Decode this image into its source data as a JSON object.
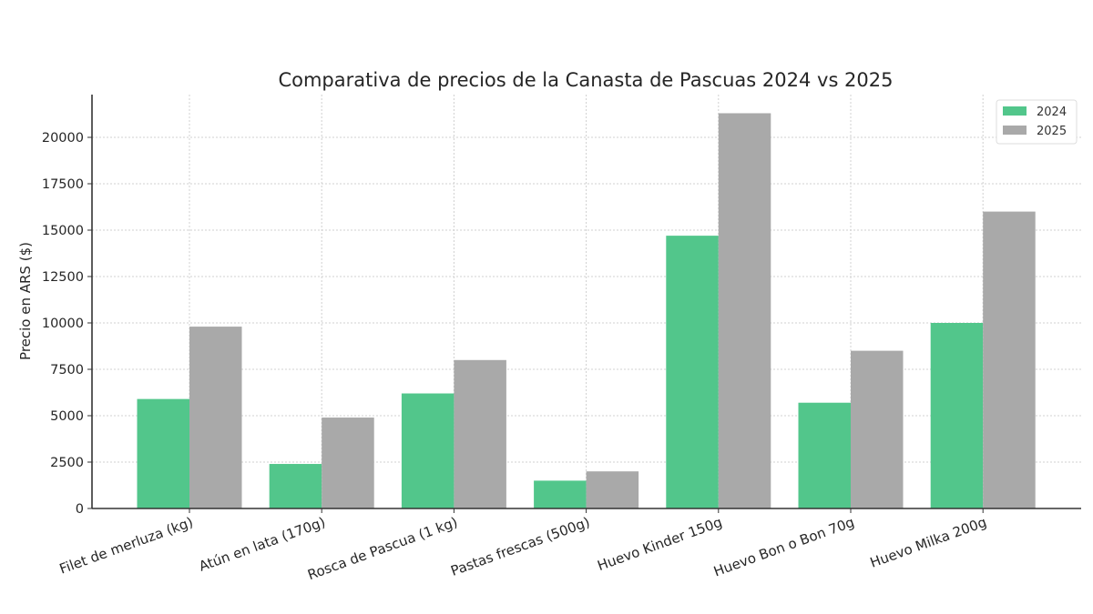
{
  "chart_data": {
    "type": "bar",
    "title": "Comparativa de precios de la Canasta de Pascuas 2024 vs 2025",
    "xlabel": "",
    "ylabel": "Precio en ARS ($)",
    "categories": [
      "Filet de merluza (kg)",
      "Atún en lata (170g)",
      "Rosca de Pascua (1 kg)",
      "Pastas frescas (500g)",
      "Huevo Kinder 150g",
      "Huevo Bon o Bon 70g",
      "Huevo Milka 200g"
    ],
    "series": [
      {
        "name": "2024",
        "color": "#52C68B",
        "values": [
          5900,
          2400,
          6200,
          1500,
          14700,
          5700,
          10000
        ]
      },
      {
        "name": "2025",
        "color": "#A9A9A9",
        "values": [
          9800,
          4900,
          8000,
          2000,
          21300,
          8500,
          16000
        ]
      }
    ],
    "ylim": [
      0,
      22300
    ],
    "yticks": [
      0,
      2500,
      5000,
      7500,
      10000,
      12500,
      15000,
      17500,
      20000
    ],
    "grid": true,
    "legend_position": "upper right",
    "xtick_rotation": -20
  }
}
